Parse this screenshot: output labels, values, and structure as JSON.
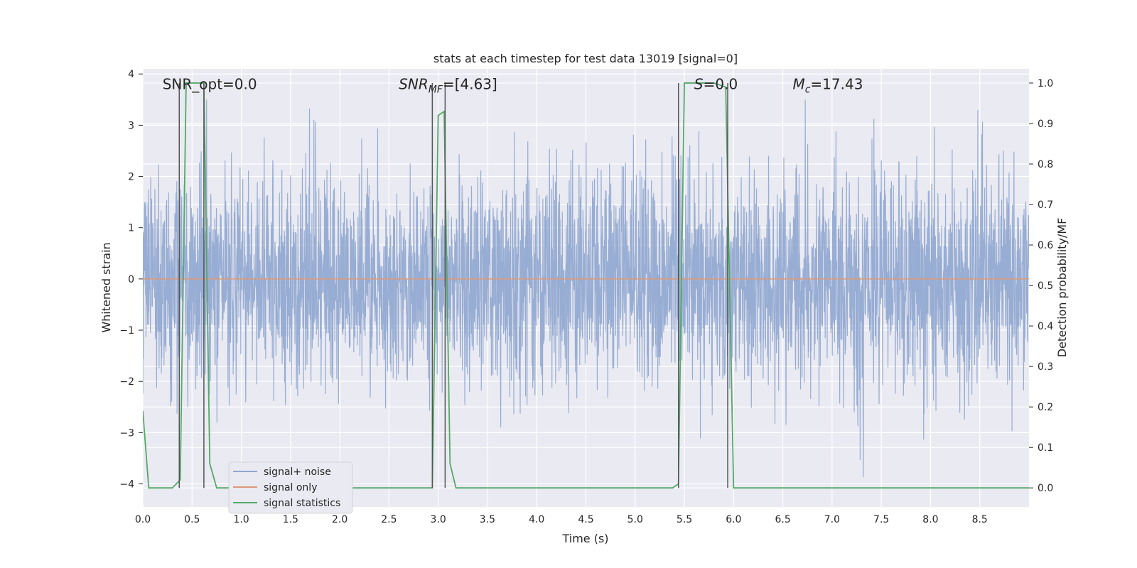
{
  "chart_data": {
    "type": "line",
    "title": "stats at each timestep for test data 13019 [signal=0]",
    "xlabel": "Time (s)",
    "ylabel": "Whitened strain",
    "y2label": "Detection probability/MF",
    "xlim": [
      0,
      9.0
    ],
    "ylim": [
      -4.45,
      4.1
    ],
    "y2lim": [
      -0.047,
      1.035
    ],
    "xticks": [
      "0.0",
      "0.5",
      "1.0",
      "1.5",
      "2.0",
      "2.5",
      "3.0",
      "3.5",
      "4.0",
      "4.5",
      "5.0",
      "5.5",
      "6.0",
      "6.5",
      "7.0",
      "7.5",
      "8.0",
      "8.5"
    ],
    "yticks": [
      "−4",
      "−3",
      "−2",
      "−1",
      "0",
      "1",
      "2",
      "3",
      "4"
    ],
    "y2ticks": [
      "0.0",
      "0.1",
      "0.2",
      "0.3",
      "0.4",
      "0.5",
      "0.6",
      "0.7",
      "0.8",
      "0.9",
      "1.0"
    ],
    "grid": true,
    "legend_position": "lower-left",
    "series": [
      {
        "name": "signal+ noise",
        "color": "#8fa6cf",
        "axis": "left",
        "kind": "noise",
        "sample_rate": 400,
        "std": 1.05,
        "peak_max": 3.5,
        "peak_min": -4.0
      },
      {
        "name": "signal only",
        "color": "#dd9a7a",
        "axis": "left",
        "x": [
          0,
          9.0
        ],
        "values": [
          0,
          0
        ]
      },
      {
        "name": "signal statistics",
        "color": "#55a868",
        "axis": "right",
        "x": [
          0.0,
          0.06,
          0.1,
          0.2,
          0.3,
          0.38,
          0.44,
          0.5,
          0.56,
          0.62,
          0.68,
          0.75,
          0.8,
          1.0,
          2.0,
          2.9,
          2.94,
          3.0,
          3.06,
          3.12,
          3.18,
          3.25,
          3.3,
          4.0,
          5.0,
          5.38,
          5.44,
          5.5,
          5.6,
          5.8,
          5.92,
          6.0,
          6.08,
          6.2,
          7.0,
          8.0,
          9.0
        ],
        "values": [
          0.19,
          0.0,
          0.0,
          0.0,
          0.0,
          0.02,
          1.0,
          1.0,
          1.0,
          1.0,
          0.06,
          0.0,
          0.0,
          0.0,
          0.0,
          0.0,
          0.0,
          0.92,
          0.93,
          0.06,
          0.0,
          0.0,
          0.0,
          0.0,
          0.0,
          0.0,
          0.01,
          1.0,
          1.0,
          1.0,
          0.99,
          0.0,
          0.0,
          0.0,
          0.0,
          0.0,
          0.0
        ]
      }
    ],
    "vlines": [
      0.37,
      0.62,
      2.94,
      3.07,
      5.44,
      5.94
    ],
    "vline_color": "#555555",
    "annotations": [
      {
        "text": "SNR_opt=0.0",
        "x": 0.2
      },
      {
        "text": "SNR",
        "sub": "MF",
        "tail": "=[4.63]",
        "italic": true,
        "x": 2.6
      },
      {
        "text": "S",
        "tail": "=0.0",
        "italic": true,
        "x": 5.6
      },
      {
        "text": "M",
        "sub": "c",
        "tail": "=17.43",
        "italic": true,
        "x": 6.6
      }
    ],
    "annotation_y": 3.8
  }
}
